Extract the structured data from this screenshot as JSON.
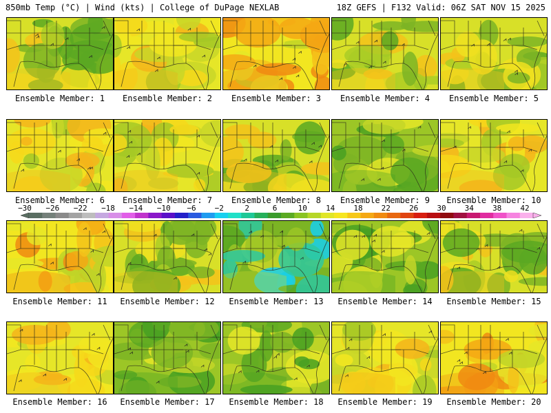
{
  "header": {
    "left_title": "850mb Temp (°C) | Wind (kts) | College of DuPage NEXLAB",
    "right_title": "18Z GEFS | F132 Valid: 06Z SAT NOV 15 2025"
  },
  "panels": [
    {
      "label": "Ensemble Member: 1",
      "theme": "green-east"
    },
    {
      "label": "Ensemble Member: 2",
      "theme": "yellow"
    },
    {
      "label": "Ensemble Member: 3",
      "theme": "yellow-hot"
    },
    {
      "label": "Ensemble Member: 4",
      "theme": "green-east"
    },
    {
      "label": "Ensemble Member: 5",
      "theme": "green-east"
    },
    {
      "label": "Ensemble Member: 6",
      "theme": "yellow"
    },
    {
      "label": "Ensemble Member: 7",
      "theme": "yellow"
    },
    {
      "label": "Ensemble Member: 8",
      "theme": "green-east"
    },
    {
      "label": "Ensemble Member: 9",
      "theme": "green"
    },
    {
      "label": "Ensemble Member: 10",
      "theme": "yellow"
    },
    {
      "label": "Ensemble Member: 11",
      "theme": "yellow-hot"
    },
    {
      "label": "Ensemble Member: 12",
      "theme": "green-east"
    },
    {
      "label": "Ensemble Member: 13",
      "theme": "cold"
    },
    {
      "label": "Ensemble Member: 14",
      "theme": "green"
    },
    {
      "label": "Ensemble Member: 15",
      "theme": "green-east"
    },
    {
      "label": "Ensemble Member: 16",
      "theme": "yellow"
    },
    {
      "label": "Ensemble Member: 17",
      "theme": "green"
    },
    {
      "label": "Ensemble Member: 18",
      "theme": "green"
    },
    {
      "label": "Ensemble Member: 19",
      "theme": "yellow"
    },
    {
      "label": "Ensemble Member: 20",
      "theme": "yellow-hot"
    }
  ],
  "colorbar": {
    "unit": "°C",
    "ticks": [
      "-30",
      "-26",
      "-22",
      "-18",
      "-14",
      "-10",
      "-6",
      "-2",
      "2",
      "6",
      "10",
      "14",
      "18",
      "22",
      "26",
      "30",
      "34",
      "38",
      "42"
    ],
    "colors": [
      "#5a6e62",
      "#74807a",
      "#8a8a8a",
      "#a3a3a3",
      "#bdbdbd",
      "#c5a8e0",
      "#d88ee8",
      "#e15ee8",
      "#c033cc",
      "#8a17c9",
      "#5a10c8",
      "#2320c9",
      "#2a5ae0",
      "#1e9bf0",
      "#16d0f0",
      "#20e0c8",
      "#1ec897",
      "#26b05a",
      "#3a9c2c",
      "#5aaa22",
      "#8ac422",
      "#b6d628",
      "#e0e628",
      "#f6e620",
      "#f6c818",
      "#f4a814",
      "#f08a10",
      "#e86810",
      "#e04410",
      "#d81e10",
      "#b80e10",
      "#900c10",
      "#a01040",
      "#c81870",
      "#e02ca0",
      "#f052c8",
      "#f684e0",
      "#fab0ec"
    ]
  }
}
